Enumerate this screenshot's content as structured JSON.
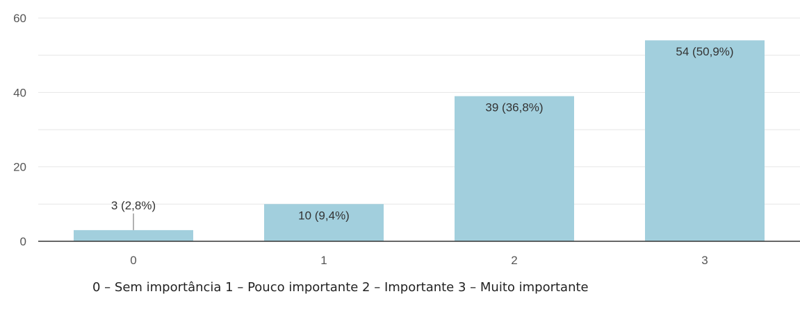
{
  "chart_data": {
    "type": "bar",
    "categories": [
      "0",
      "1",
      "2",
      "3"
    ],
    "values": [
      3,
      10,
      39,
      54
    ],
    "data_labels": [
      "3 (2,8%)",
      "10 (9,4%)",
      "39 (36,8%)",
      "54 (50,9%)"
    ],
    "ylim": [
      0,
      60
    ],
    "yticks": [
      "0",
      "20",
      "40",
      "60"
    ],
    "grid": true,
    "bar_color": "#a2cfdd",
    "axis_color": "#333333",
    "grid_color": "#e6e6e6"
  },
  "caption": "0 – Sem importância 1 – Pouco importante 2 – Importante 3 – Muito importante"
}
